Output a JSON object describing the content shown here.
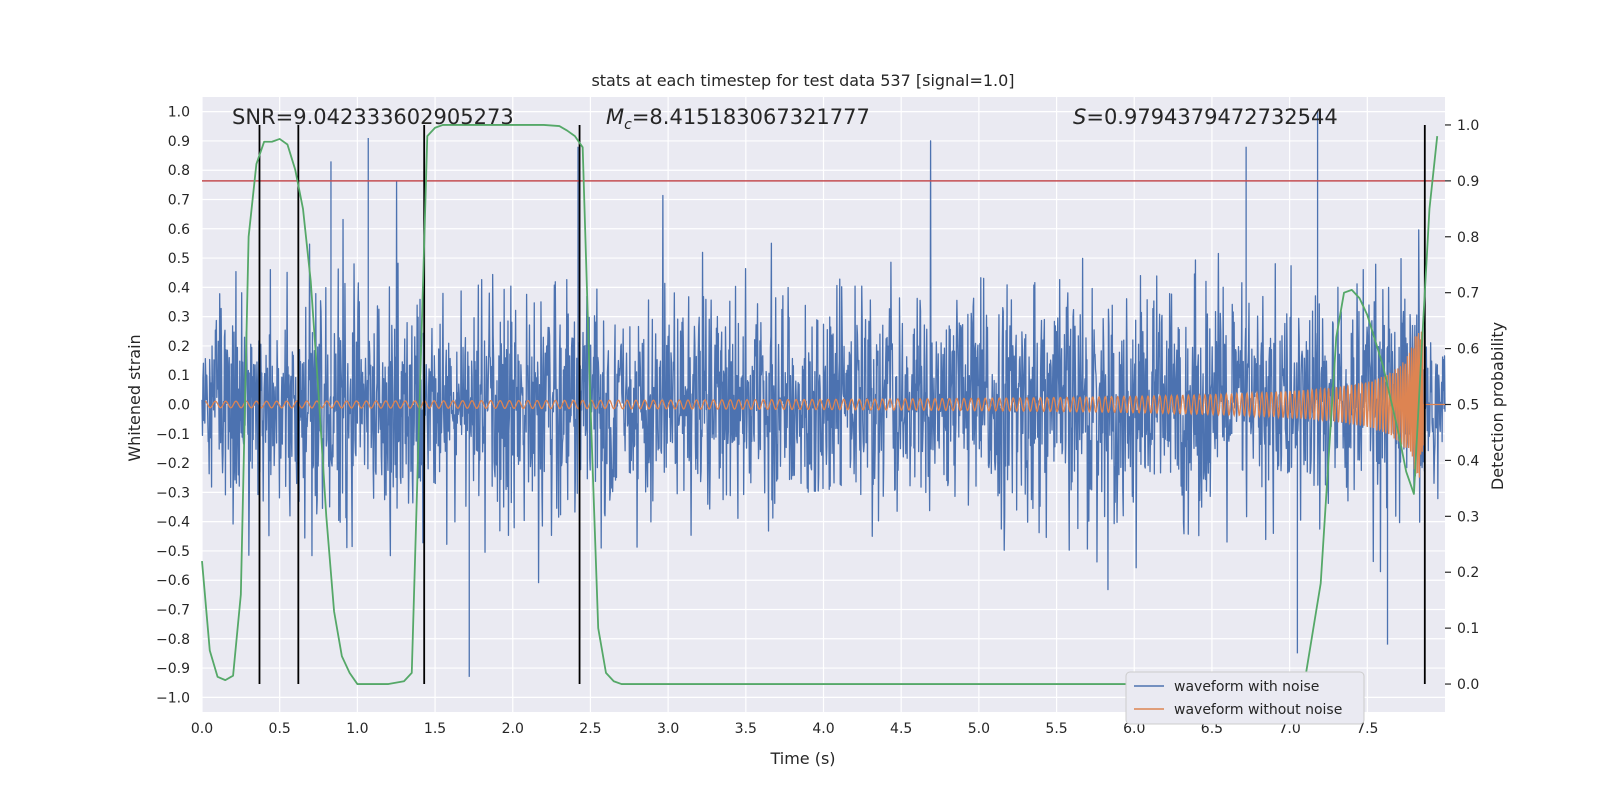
{
  "chart_data": {
    "type": "line",
    "title": "stats at each timestep for test data 537 [signal=1.0]",
    "xlabel": "Time (s)",
    "ylabel_left": "Whitened strain",
    "ylabel_right": "Detection probability",
    "xlim": [
      0.0,
      8.0
    ],
    "ylim_left": [
      -1.05,
      1.05
    ],
    "ylim_right": [
      -0.05,
      1.05
    ],
    "x_ticks": [
      "0.0",
      "0.5",
      "1.0",
      "1.5",
      "2.0",
      "2.5",
      "3.0",
      "3.5",
      "4.0",
      "4.5",
      "5.0",
      "5.5",
      "6.0",
      "6.5",
      "7.0",
      "7.5"
    ],
    "y_ticks_left": [
      "1.0",
      "0.9",
      "0.8",
      "0.7",
      "0.6",
      "0.5",
      "0.4",
      "0.3",
      "0.2",
      "0.1",
      "0.0",
      "−0.1",
      "−0.2",
      "−0.3",
      "−0.4",
      "−0.5",
      "−0.6",
      "−0.7",
      "−0.8",
      "−0.9",
      "−1.0"
    ],
    "y_ticks_right": [
      "1.0",
      "0.9",
      "0.8",
      "0.7",
      "0.6",
      "0.5",
      "0.4",
      "0.3",
      "0.2",
      "0.1",
      "0.0"
    ],
    "annotations": {
      "snr": "SNR=9.042333602905273",
      "mc_symbol": "M",
      "mc_sub": "c",
      "mc_value": "=8.415183067321777",
      "s_symbol": "S",
      "s_value": "=0.9794379472732544"
    },
    "threshold": {
      "axis": "right",
      "value": 0.9,
      "color": "#c44e52"
    },
    "vertical_markers": [
      0.37,
      0.62,
      1.43,
      2.43,
      7.87
    ],
    "series": [
      {
        "name": "waveform with noise",
        "color": "#4c72b0",
        "axis": "left",
        "description": "noisy whitened strain, amplitude ~0.3-0.6 with spikes up to ~0.95",
        "spikes": [
          [
            0.83,
            0.83
          ],
          [
            1.07,
            0.91
          ],
          [
            2.42,
            0.88
          ],
          [
            6.72,
            0.88
          ],
          [
            7.18,
            1.0
          ],
          [
            7.87,
            0.63
          ],
          [
            1.72,
            -0.93
          ],
          [
            7.05,
            -0.85
          ],
          [
            7.63,
            -0.82
          ]
        ]
      },
      {
        "name": "waveform without noise",
        "color": "#dd8452",
        "axis": "left",
        "description": "chirp signal, amplitude rising from ~0.01 to ~0.25 near merger at 7.86 s",
        "merger_time": 7.86,
        "peak_amplitude": 0.25
      },
      {
        "name": "detection probability",
        "color": "#55a868",
        "axis": "right",
        "x": [
          0.0,
          0.05,
          0.1,
          0.15,
          0.2,
          0.25,
          0.3,
          0.35,
          0.4,
          0.45,
          0.5,
          0.55,
          0.6,
          0.65,
          0.7,
          0.75,
          0.8,
          0.85,
          0.9,
          0.95,
          1.0,
          1.1,
          1.2,
          1.3,
          1.35,
          1.4,
          1.45,
          1.5,
          1.55,
          1.6,
          1.8,
          2.0,
          2.2,
          2.3,
          2.35,
          2.4,
          2.45,
          2.5,
          2.55,
          2.6,
          2.65,
          2.7,
          3.0,
          4.0,
          5.0,
          6.0,
          6.9,
          7.0,
          7.1,
          7.2,
          7.25,
          7.3,
          7.35,
          7.4,
          7.45,
          7.5,
          7.6,
          7.7,
          7.75,
          7.8,
          7.85,
          7.9,
          7.95
        ],
        "y": [
          0.22,
          0.06,
          0.013,
          0.007,
          0.015,
          0.16,
          0.8,
          0.93,
          0.97,
          0.97,
          0.975,
          0.965,
          0.92,
          0.85,
          0.72,
          0.52,
          0.3,
          0.13,
          0.05,
          0.02,
          0.0,
          0.0,
          0.0,
          0.005,
          0.02,
          0.5,
          0.98,
          0.995,
          1.0,
          1.0,
          1.0,
          1.0,
          1.0,
          0.998,
          0.99,
          0.98,
          0.96,
          0.5,
          0.1,
          0.02,
          0.005,
          0.0,
          0.0,
          0.0,
          0.0,
          0.0,
          0.0,
          0.0,
          0.01,
          0.18,
          0.4,
          0.62,
          0.7,
          0.705,
          0.69,
          0.66,
          0.57,
          0.45,
          0.38,
          0.34,
          0.6,
          0.85,
          0.98
        ]
      }
    ],
    "legend": {
      "location": "lower-right",
      "entries": [
        "waveform with noise",
        "waveform without noise"
      ]
    }
  }
}
